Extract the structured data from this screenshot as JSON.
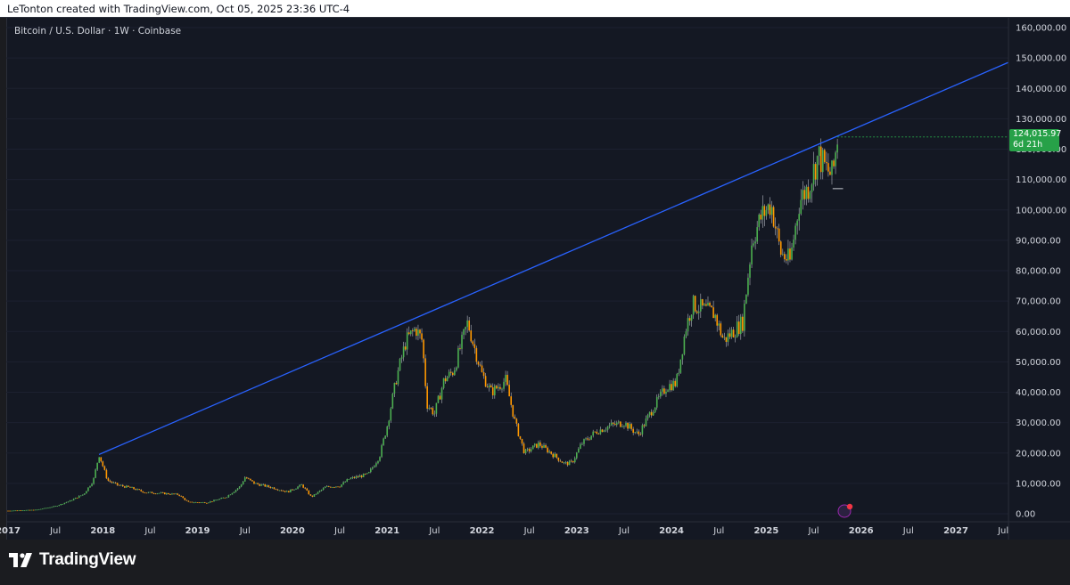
{
  "header": {
    "text": "LeTonton created with TradingView.com, Oct 05, 2025 23:36 UTC-4"
  },
  "symbol": {
    "text": "Bitcoin / U.S. Dollar · 1W · Coinbase"
  },
  "price_label": {
    "price": "124,015.97",
    "countdown": "6d 21h"
  },
  "brand": {
    "name": "TradingView"
  },
  "colors": {
    "up": "#26a69a",
    "up_candle": "#4caf50",
    "down": "#ff9800",
    "trendline": "#2962ff",
    "badge": "#27a148",
    "background": "#141823"
  },
  "chart_data": {
    "type": "candlestick",
    "title": "Bitcoin / U.S. Dollar · 1W · Coinbase",
    "ylim": [
      0,
      160000
    ],
    "y_ticks": [
      "160,000.00",
      "150,000.00",
      "140,000.00",
      "130,000.00",
      "120,000.00",
      "110,000.00",
      "100,000.00",
      "90,000.00",
      "80,000.00",
      "70,000.00",
      "60,000.00",
      "50,000.00",
      "40,000.00",
      "30,000.00",
      "20,000.00",
      "10,000.00",
      "0.00"
    ],
    "y_tick_values": [
      160000,
      150000,
      140000,
      130000,
      120000,
      110000,
      100000,
      90000,
      80000,
      70000,
      60000,
      50000,
      40000,
      30000,
      20000,
      10000,
      0
    ],
    "x_ticks": [
      "2017",
      "Jul",
      "2018",
      "Jul",
      "2019",
      "Jul",
      "2020",
      "Jul",
      "2021",
      "Jul",
      "2022",
      "Jul",
      "2023",
      "Jul",
      "2024",
      "Jul",
      "2025",
      "Jul",
      "2026",
      "Jul",
      "2027",
      "Jul"
    ],
    "x_tick_years": [
      2017.0,
      2017.5,
      2018.0,
      2018.5,
      2019.0,
      2019.5,
      2020.0,
      2020.5,
      2021.0,
      2021.5,
      2022.0,
      2022.5,
      2023.0,
      2023.5,
      2024.0,
      2024.5,
      2025.0,
      2025.5,
      2026.0,
      2026.5,
      2027.0,
      2027.5
    ],
    "price_path": [
      [
        2017.0,
        1000
      ],
      [
        2017.3,
        1300
      ],
      [
        2017.5,
        2500
      ],
      [
        2017.65,
        4200
      ],
      [
        2017.8,
        6500
      ],
      [
        2017.9,
        11000
      ],
      [
        2017.96,
        19500
      ],
      [
        2018.05,
        11000
      ],
      [
        2018.15,
        9500
      ],
      [
        2018.3,
        8500
      ],
      [
        2018.45,
        7000
      ],
      [
        2018.6,
        6800
      ],
      [
        2018.8,
        6300
      ],
      [
        2018.9,
        3800
      ],
      [
        2019.1,
        3700
      ],
      [
        2019.3,
        5500
      ],
      [
        2019.45,
        9000
      ],
      [
        2019.5,
        12000
      ],
      [
        2019.6,
        10000
      ],
      [
        2019.8,
        8500
      ],
      [
        2019.95,
        7200
      ],
      [
        2020.1,
        9500
      ],
      [
        2020.2,
        5500
      ],
      [
        2020.35,
        8800
      ],
      [
        2020.5,
        9200
      ],
      [
        2020.6,
        11500
      ],
      [
        2020.8,
        13000
      ],
      [
        2020.92,
        19000
      ],
      [
        2021.0,
        29000
      ],
      [
        2021.1,
        45000
      ],
      [
        2021.2,
        57000
      ],
      [
        2021.3,
        61000
      ],
      [
        2021.37,
        57000
      ],
      [
        2021.42,
        36000
      ],
      [
        2021.5,
        33000
      ],
      [
        2021.6,
        44000
      ],
      [
        2021.7,
        47000
      ],
      [
        2021.85,
        63000
      ],
      [
        2021.9,
        57000
      ],
      [
        2022.0,
        46000
      ],
      [
        2022.1,
        40000
      ],
      [
        2022.25,
        44000
      ],
      [
        2022.35,
        30000
      ],
      [
        2022.45,
        20000
      ],
      [
        2022.6,
        23000
      ],
      [
        2022.75,
        19500
      ],
      [
        2022.87,
        16500
      ],
      [
        2022.95,
        16800
      ],
      [
        2023.05,
        23000
      ],
      [
        2023.2,
        27000
      ],
      [
        2023.35,
        29000
      ],
      [
        2023.5,
        30000
      ],
      [
        2023.65,
        26000
      ],
      [
        2023.8,
        34500
      ],
      [
        2023.95,
        42000
      ],
      [
        2024.05,
        43000
      ],
      [
        2024.15,
        61000
      ],
      [
        2024.22,
        69000
      ],
      [
        2024.35,
        67000
      ],
      [
        2024.45,
        66000
      ],
      [
        2024.55,
        57000
      ],
      [
        2024.65,
        60000
      ],
      [
        2024.75,
        63000
      ],
      [
        2024.85,
        90000
      ],
      [
        2024.95,
        98000
      ],
      [
        2025.05,
        102000
      ],
      [
        2025.15,
        86000
      ],
      [
        2025.25,
        83000
      ],
      [
        2025.35,
        103000
      ],
      [
        2025.45,
        108000
      ],
      [
        2025.55,
        118000
      ],
      [
        2025.62,
        114000
      ],
      [
        2025.7,
        111000
      ],
      [
        2025.75,
        124016
      ]
    ],
    "trendline": {
      "x1": 2017.96,
      "y1": 19500,
      "x2": 2027.55,
      "y2": 148500
    },
    "support_line": {
      "x1": 2025.7,
      "x2": 2025.81,
      "y": 107000
    },
    "last_price": 124015.97
  }
}
